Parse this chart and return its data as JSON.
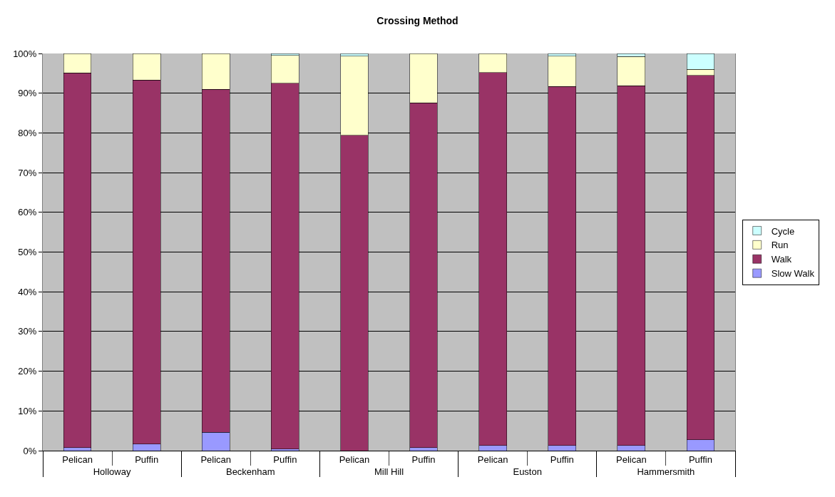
{
  "chart_data": {
    "type": "bar",
    "title": "Crossing Method",
    "stacked": true,
    "categories": [
      "Pelican",
      "Puffin",
      "Pelican",
      "Puffin",
      "Pelican",
      "Puffin",
      "Pelican",
      "Puffin",
      "Pelican",
      "Puffin"
    ],
    "annotations": [
      "Holloway",
      "Beckenham",
      "Mill Hill",
      "Euston",
      "Hammersmith"
    ],
    "series": [
      {
        "name": "Slow Walk",
        "color": "#9999ff",
        "values": [
          0.8,
          1.7,
          4.6,
          0.4,
          null,
          0.8,
          1.3,
          1.3,
          1.3,
          2.7
        ]
      },
      {
        "name": "Walk",
        "color": "#993366",
        "values": [
          94.3,
          91.6,
          86.4,
          92.1,
          79.4,
          86.8,
          93.9,
          90.4,
          90.6,
          91.8
        ]
      },
      {
        "name": "Run",
        "color": "#ffffcc",
        "values": [
          4.9,
          6.7,
          9.0,
          7.0,
          19.9,
          12.4,
          4.8,
          7.6,
          7.3,
          1.5
        ]
      },
      {
        "name": "Cycle",
        "color": "#ccffff",
        "values": [
          null,
          null,
          null,
          0.5,
          0.7,
          null,
          null,
          0.7,
          0.8,
          4.0
        ]
      }
    ],
    "ylim": [
      0,
      100
    ],
    "yticks": [
      {
        "value": 0,
        "label": "0%"
      },
      {
        "value": 10,
        "label": "10%"
      },
      {
        "value": 20,
        "label": "20%"
      },
      {
        "value": 30,
        "label": "30%"
      },
      {
        "value": 40,
        "label": "40%"
      },
      {
        "value": 50,
        "label": "50%"
      },
      {
        "value": 60,
        "label": "60%"
      },
      {
        "value": 70,
        "label": "70%"
      },
      {
        "value": 80,
        "label": "80%"
      },
      {
        "value": 90,
        "label": "90%"
      },
      {
        "value": 100,
        "label": "100%"
      }
    ],
    "grid": "y",
    "legend": "right"
  }
}
